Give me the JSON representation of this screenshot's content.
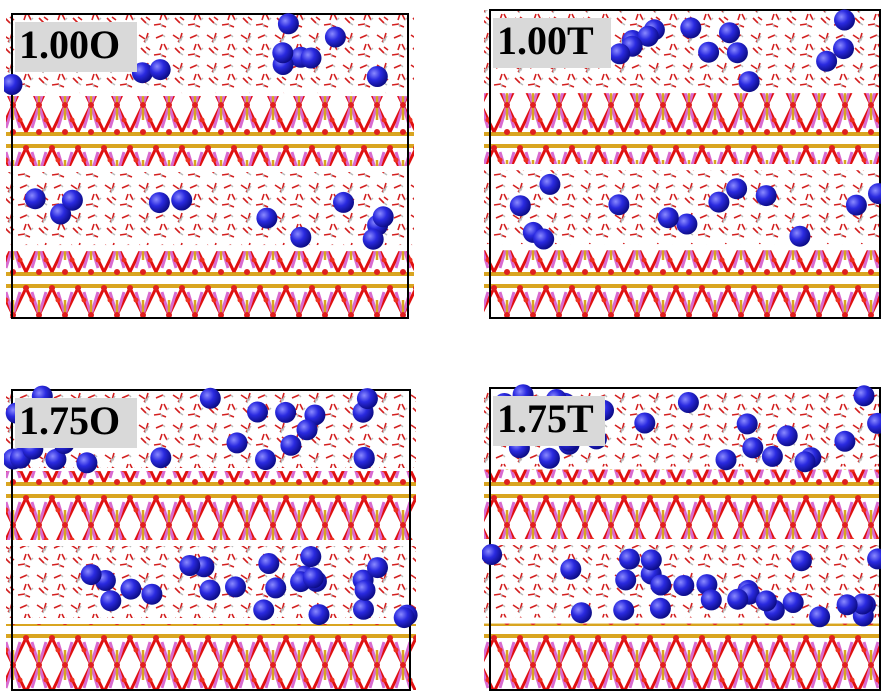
{
  "panels": [
    {
      "label": "1.00O"
    },
    {
      "label": "1.00T"
    },
    {
      "label": "1.75O"
    },
    {
      "label": "1.75T"
    }
  ]
}
